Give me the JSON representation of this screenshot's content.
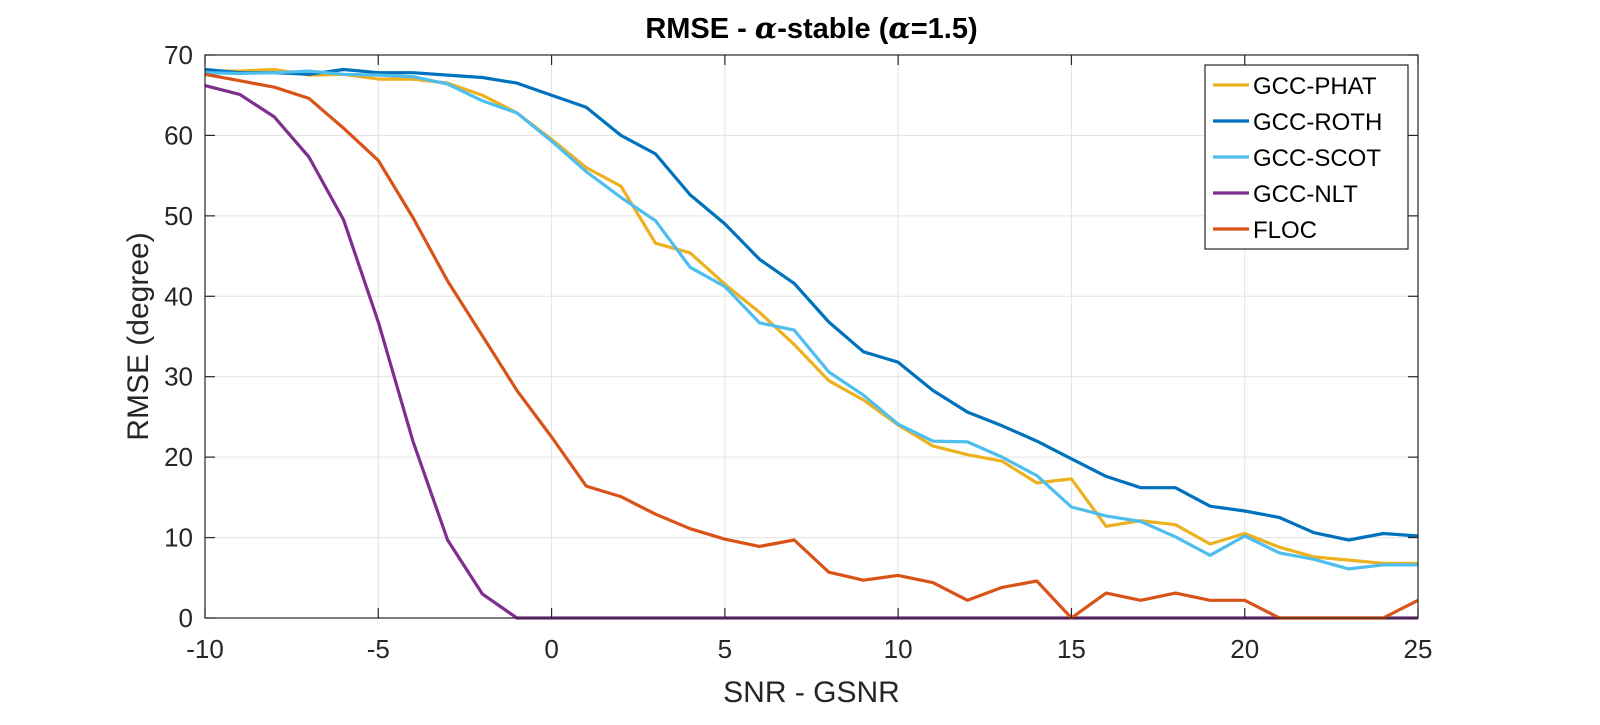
{
  "chart_data": {
    "type": "line",
    "title_parts": [
      "RMSE - ",
      "α",
      "-stable (",
      "α",
      "=1.5)"
    ],
    "xlabel": "SNR - GSNR",
    "ylabel": "RMSE (degree)",
    "xlim": [
      -10,
      25
    ],
    "ylim": [
      0,
      70
    ],
    "xticks": [
      -10,
      -5,
      0,
      5,
      10,
      15,
      20,
      25
    ],
    "yticks": [
      0,
      10,
      20,
      30,
      40,
      50,
      60,
      70
    ],
    "grid": true,
    "legend_position": "top-right",
    "x": [
      -10,
      -9,
      -8,
      -7,
      -6,
      -5,
      -4,
      -3,
      -2,
      -1,
      0,
      1,
      2,
      3,
      4,
      5,
      6,
      7,
      8,
      9,
      10,
      11,
      12,
      13,
      14,
      15,
      16,
      17,
      18,
      19,
      20,
      21,
      22,
      23,
      24,
      25
    ],
    "series": [
      {
        "name": "GCC-PHAT",
        "color": "#EDB120",
        "values": [
          68,
          68,
          68.2,
          67.5,
          67.6,
          67,
          67,
          66.5,
          65,
          62.8,
          59.5,
          56,
          53.7,
          46.6,
          45.4,
          41.5,
          38,
          34,
          29.5,
          27.1,
          24,
          21.4,
          20.3,
          19.5,
          16.8,
          17.3,
          11.4,
          12.1,
          11.6,
          9.2,
          10.5,
          8.8,
          7.6,
          7.2,
          6.8,
          6.8
        ]
      },
      {
        "name": "GCC-ROTH",
        "color": "#0072BD",
        "values": [
          68.2,
          67.8,
          67.8,
          67.6,
          68.2,
          67.8,
          67.8,
          67.5,
          67.2,
          66.5,
          65,
          63.5,
          60,
          57.7,
          52.6,
          49,
          44.6,
          41.6,
          36.8,
          33.1,
          31.8,
          28.3,
          25.6,
          23.9,
          22,
          19.8,
          17.6,
          16.2,
          16.2,
          13.9,
          13.3,
          12.5,
          10.6,
          9.7,
          10.5,
          10.2
        ]
      },
      {
        "name": "GCC-SCOT",
        "color": "#4DBEEE",
        "values": [
          67.8,
          67.7,
          67.8,
          68,
          67.6,
          67.5,
          67.3,
          66.4,
          64.3,
          62.8,
          59.3,
          55.5,
          52.3,
          49.4,
          43.6,
          41.2,
          36.7,
          35.8,
          30.6,
          27.7,
          24.1,
          22,
          21.9,
          20,
          17.7,
          13.8,
          12.7,
          12,
          10.1,
          7.8,
          10.2,
          8.1,
          7.3,
          6.1,
          6.6,
          6.6
        ]
      },
      {
        "name": "GCC-NLT",
        "color": "#7E2F8E",
        "values": [
          66.2,
          65.1,
          62.3,
          57.3,
          49.5,
          36.8,
          22,
          9.7,
          3,
          0,
          0,
          0,
          0,
          0,
          0,
          0,
          0,
          0,
          0,
          0,
          0,
          0,
          0,
          0,
          0,
          0,
          0,
          0,
          0,
          0,
          0,
          0,
          0,
          0,
          0,
          0
        ]
      },
      {
        "name": "FLOC",
        "color": "#D95319",
        "values": [
          67.6,
          66.8,
          66,
          64.6,
          60.9,
          56.9,
          49.8,
          41.9,
          35.1,
          28.3,
          22.5,
          16.4,
          15.1,
          12.9,
          11.1,
          9.8,
          8.9,
          9.7,
          5.7,
          4.7,
          5.3,
          4.4,
          2.2,
          3.8,
          4.6,
          0,
          3.1,
          2.2,
          3.1,
          2.2,
          2.2,
          0,
          0,
          0,
          0,
          2.2
        ]
      }
    ]
  }
}
